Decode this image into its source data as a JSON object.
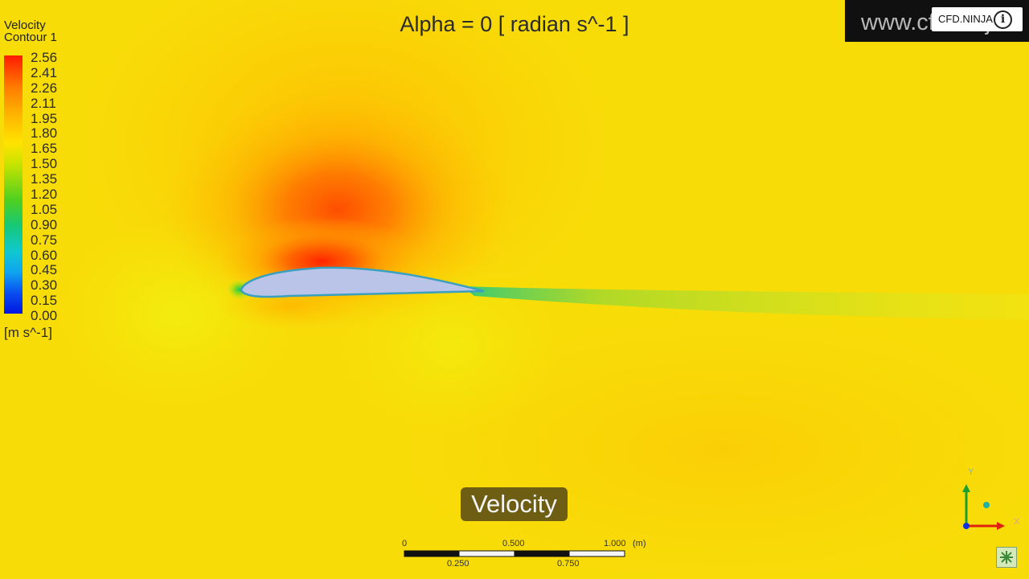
{
  "plot": {
    "title": "Alpha = 0 [ radian s^-1 ]",
    "caption": "Velocity"
  },
  "legend": {
    "title_line1": "Velocity",
    "title_line2": "Contour 1",
    "ticks": [
      "2.56",
      "2.41",
      "2.26",
      "2.11",
      "1.95",
      "1.80",
      "1.65",
      "1.50",
      "1.35",
      "1.20",
      "1.05",
      "0.90",
      "0.75",
      "0.60",
      "0.45",
      "0.30",
      "0.15",
      "0.00"
    ],
    "units": "[m s^-1]",
    "colors": [
      "#ff1a00",
      "#ff7a00",
      "#ffb000",
      "#ffe400",
      "#c8e400",
      "#4fd020",
      "#16c878",
      "#10c8d0",
      "#10a4f0",
      "#0a4ef0",
      "#0016e0"
    ]
  },
  "watermark": {
    "text": "www.cfd.ninja",
    "channel": "CFD.NINJA",
    "info_icon": "info-icon"
  },
  "scalebar": {
    "top_labels": [
      "0",
      "0.500",
      "1.000"
    ],
    "bottom_labels": [
      "0.250",
      "0.750"
    ],
    "unit": "(m)"
  },
  "axes_triad": {
    "y_label": "Y",
    "x_label": "X"
  },
  "colors": {
    "background": "#f8dc08",
    "airfoil": "#b9c4e8",
    "airfoil_edge": "#3aa0c0",
    "stagnation_high": "#ff3000"
  }
}
